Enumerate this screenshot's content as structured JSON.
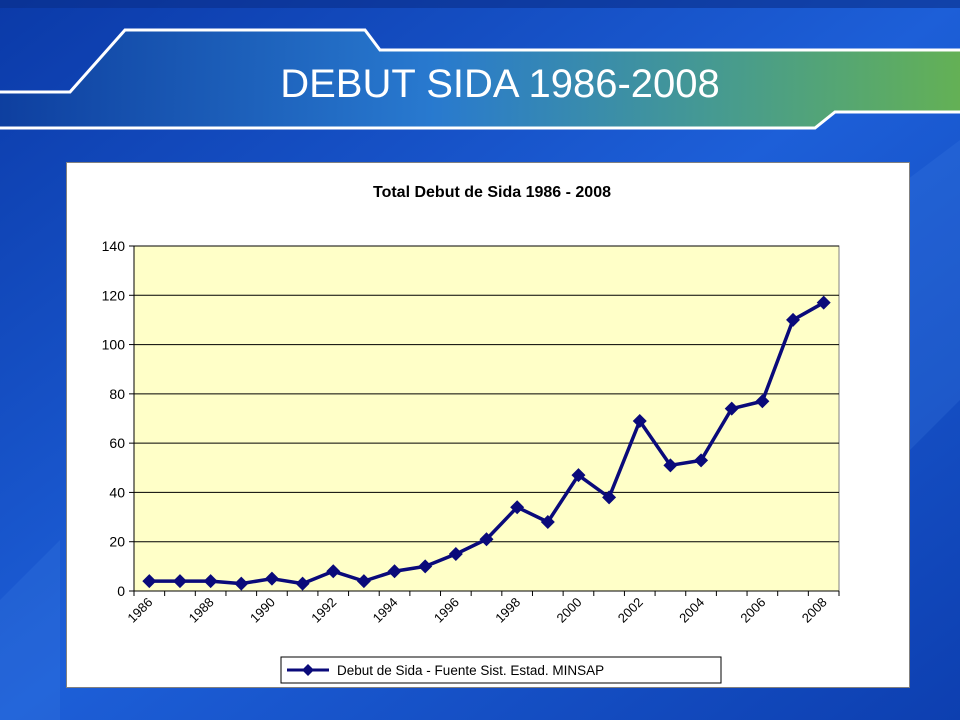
{
  "slide": {
    "title": "DEBUT SIDA 1986-2008"
  },
  "colors": {
    "plot_background": "#ffffc8",
    "series_line": "#0a0a7a",
    "grid": "#000000"
  },
  "chart_data": {
    "type": "line",
    "title": "Total Debut de Sida 1986 - 2008",
    "xlabel": "",
    "ylabel": "",
    "ylim": [
      0,
      140
    ],
    "yticks": [
      0,
      20,
      40,
      60,
      80,
      100,
      120,
      140
    ],
    "categories": [
      "1986",
      "1987",
      "1988",
      "1989",
      "1990",
      "1991",
      "1992",
      "1993",
      "1994",
      "1995",
      "1996",
      "1997",
      "1998",
      "1999",
      "2000",
      "2001",
      "2002",
      "2003",
      "2004",
      "2005",
      "2006",
      "2007",
      "2008"
    ],
    "tick_labels": [
      "1986",
      "1988",
      "1990",
      "1992",
      "1994",
      "1996",
      "1998",
      "2000",
      "2002",
      "2004",
      "2006",
      "2008"
    ],
    "grid": true,
    "legend_position": "bottom",
    "series": [
      {
        "name": "Debut de Sida - Fuente Sist. Estad. MINSAP",
        "marker": "diamond",
        "values": [
          4,
          4,
          4,
          3,
          5,
          3,
          8,
          4,
          8,
          10,
          15,
          21,
          34,
          28,
          47,
          38,
          69,
          51,
          53,
          74,
          77,
          110,
          117
        ]
      }
    ]
  }
}
